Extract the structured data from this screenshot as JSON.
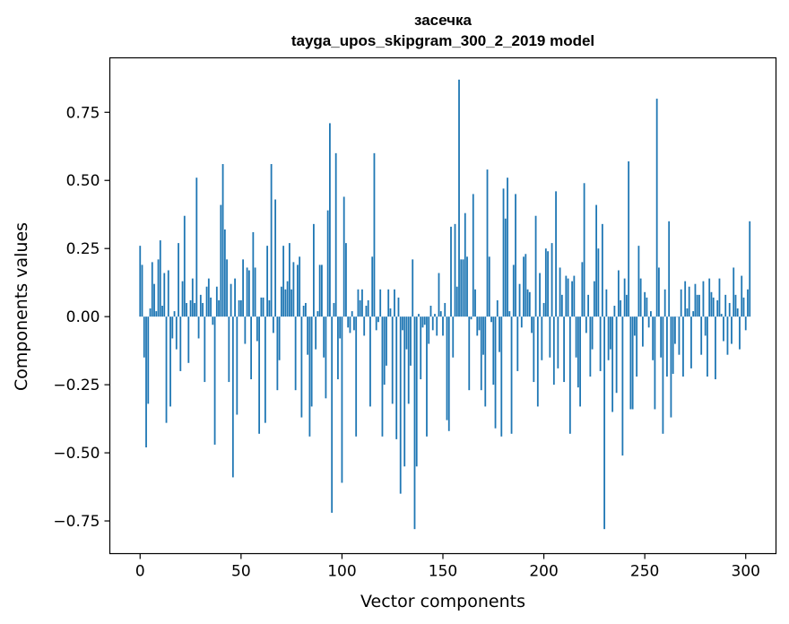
{
  "chart_data": {
    "type": "bar",
    "title_line1": "засечка",
    "title_line2": "tayga_upos_skipgram_300_2_2019 model",
    "xlabel": "Vector components",
    "ylabel": "Components values",
    "xlim": [
      -15,
      315
    ],
    "ylim": [
      -0.87,
      0.95
    ],
    "xticks": [
      0,
      50,
      100,
      150,
      200,
      250,
      300
    ],
    "xtick_labels": [
      "0",
      "50",
      "100",
      "150",
      "200",
      "250",
      "300"
    ],
    "yticks": [
      -0.75,
      -0.5,
      -0.25,
      0.0,
      0.25,
      0.5,
      0.75
    ],
    "ytick_labels": [
      "−0.75",
      "−0.50",
      "−0.25",
      "0.00",
      "0.25",
      "0.50",
      "0.75"
    ],
    "bar_color": "#1f77b4",
    "grid": false,
    "values": [
      0.26,
      0.19,
      -0.15,
      -0.48,
      -0.32,
      0.03,
      0.2,
      0.12,
      0.02,
      0.21,
      0.28,
      0.04,
      0.16,
      -0.39,
      0.17,
      -0.33,
      -0.08,
      0.02,
      -0.12,
      0.27,
      -0.2,
      0.13,
      0.37,
      0.05,
      -0.17,
      0.06,
      0.14,
      0.05,
      0.51,
      -0.08,
      0.08,
      0.05,
      -0.24,
      0.11,
      0.14,
      0.07,
      -0.03,
      -0.47,
      0.11,
      0.06,
      0.41,
      0.56,
      0.32,
      0.21,
      -0.24,
      0.12,
      -0.59,
      0.14,
      -0.36,
      0.06,
      0.06,
      0.21,
      -0.1,
      0.18,
      0.17,
      -0.23,
      0.31,
      0.18,
      -0.09,
      -0.43,
      0.07,
      0.07,
      -0.39,
      0.26,
      0.06,
      0.56,
      -0.06,
      0.43,
      -0.27,
      -0.16,
      0.11,
      0.26,
      0.1,
      0.13,
      0.27,
      0.1,
      0.2,
      -0.27,
      0.19,
      0.22,
      -0.37,
      0.04,
      0.05,
      -0.14,
      -0.44,
      -0.33,
      0.34,
      -0.12,
      0.02,
      0.19,
      0.19,
      -0.15,
      -0.3,
      0.39,
      0.71,
      -0.72,
      0.05,
      0.6,
      -0.23,
      -0.08,
      -0.61,
      0.44,
      0.27,
      -0.04,
      -0.06,
      0.02,
      -0.05,
      -0.44,
      0.1,
      0.06,
      0.1,
      -0.07,
      0.04,
      0.06,
      -0.33,
      0.22,
      0.6,
      -0.05,
      -0.02,
      0.1,
      -0.44,
      -0.25,
      -0.18,
      0.1,
      0.03,
      -0.32,
      0.1,
      -0.45,
      0.07,
      -0.65,
      -0.05,
      -0.55,
      -0.12,
      -0.32,
      -0.18,
      0.21,
      -0.78,
      -0.55,
      0.01,
      -0.23,
      -0.04,
      -0.03,
      -0.44,
      -0.1,
      0.04,
      -0.05,
      0.01,
      -0.07,
      0.16,
      0.02,
      -0.07,
      0.05,
      -0.38,
      -0.42,
      0.33,
      -0.15,
      0.34,
      0.11,
      0.87,
      0.21,
      0.21,
      0.38,
      0.22,
      -0.27,
      -0.01,
      0.45,
      0.1,
      -0.07,
      -0.05,
      -0.27,
      -0.14,
      -0.33,
      0.54,
      0.22,
      -0.02,
      -0.25,
      -0.41,
      0.06,
      -0.13,
      -0.44,
      0.47,
      0.36,
      0.51,
      0.02,
      -0.43,
      0.19,
      0.45,
      -0.2,
      0.12,
      -0.04,
      0.22,
      0.23,
      0.1,
      0.09,
      -0.06,
      -0.24,
      0.37,
      -0.33,
      0.16,
      -0.16,
      0.05,
      0.25,
      0.24,
      -0.15,
      0.27,
      -0.25,
      0.46,
      -0.19,
      0.18,
      0.08,
      -0.24,
      0.15,
      0.14,
      -0.43,
      0.13,
      0.15,
      -0.15,
      -0.26,
      -0.33,
      0.2,
      0.49,
      -0.06,
      0.08,
      -0.22,
      -0.12,
      0.13,
      0.41,
      0.25,
      -0.2,
      0.34,
      -0.78,
      0.1,
      -0.16,
      -0.12,
      -0.35,
      0.04,
      -0.28,
      0.17,
      0.06,
      -0.51,
      0.14,
      0.08,
      0.57,
      -0.34,
      -0.34,
      -0.07,
      -0.22,
      0.26,
      0.14,
      -0.11,
      0.09,
      0.07,
      -0.04,
      0.02,
      -0.16,
      -0.34,
      0.8,
      0.18,
      -0.15,
      -0.43,
      0.1,
      -0.22,
      0.35,
      -0.37,
      -0.21,
      -0.1,
      0.0,
      -0.14,
      0.1,
      -0.22,
      0.13,
      0.03,
      0.11,
      -0.19,
      0.02,
      0.12,
      0.08,
      0.08,
      -0.14,
      0.13,
      -0.07,
      -0.22,
      0.14,
      0.09,
      0.07,
      -0.23,
      0.06,
      0.14,
      0.01,
      -0.09,
      0.08,
      -0.14,
      0.05,
      -0.1,
      0.18,
      0.08,
      0.03,
      -0.12,
      0.15,
      0.07,
      -0.05,
      0.1,
      0.35
    ]
  }
}
